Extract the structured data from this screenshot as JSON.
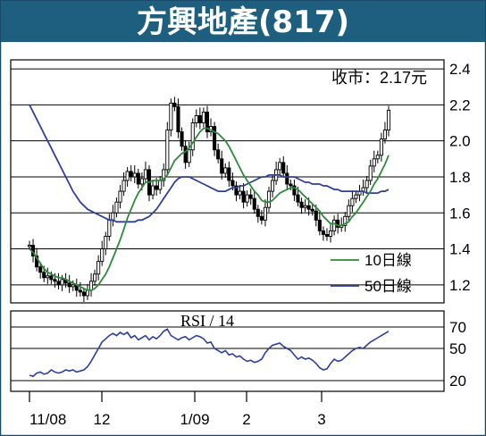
{
  "chart_data": {
    "type": "candlestick",
    "title": "方興地產(817)",
    "price_label": "收市：2.17元",
    "price_axis": {
      "ticks": [
        "2.4",
        "2.2",
        "2.0",
        "1.8",
        "1.6",
        "1.4",
        "1.2"
      ],
      "ylim": [
        1.1,
        2.45
      ]
    },
    "rsi_axis": {
      "ticks": [
        "70",
        "50",
        "20"
      ],
      "ylim": [
        10,
        85
      ]
    },
    "x_ticks": [
      "11/08",
      "12",
      "1/09",
      "2",
      "3"
    ],
    "legend": [
      {
        "name": "10日線",
        "color": "#2e8b3a"
      },
      {
        "name": "50日線",
        "color": "#2f3f9e"
      }
    ],
    "rsi_title": "RSI / 14",
    "close": [
      1.42,
      1.36,
      1.3,
      1.27,
      1.24,
      1.25,
      1.23,
      1.22,
      1.2,
      1.23,
      1.21,
      1.19,
      1.2,
      1.17,
      1.16,
      1.14,
      1.17,
      1.22,
      1.26,
      1.33,
      1.4,
      1.47,
      1.56,
      1.6,
      1.66,
      1.72,
      1.78,
      1.83,
      1.8,
      1.82,
      1.76,
      1.79,
      1.84,
      1.7,
      1.75,
      1.73,
      1.78,
      1.84,
      2.06,
      2.21,
      2.19,
      2.05,
      1.97,
      1.88,
      1.95,
      2.1,
      2.14,
      2.1,
      2.16,
      2.05,
      2.08,
      1.95,
      1.9,
      1.82,
      1.85,
      1.78,
      1.75,
      1.7,
      1.72,
      1.66,
      1.7,
      1.68,
      1.62,
      1.58,
      1.56,
      1.63,
      1.72,
      1.78,
      1.84,
      1.88,
      1.82,
      1.76,
      1.75,
      1.7,
      1.66,
      1.63,
      1.64,
      1.62,
      1.61,
      1.56,
      1.5,
      1.48,
      1.47,
      1.5,
      1.56,
      1.52,
      1.53,
      1.58,
      1.64,
      1.68,
      1.7,
      1.72,
      1.74,
      1.78,
      1.86,
      1.9,
      1.92,
      2.01,
      2.06,
      2.17
    ],
    "ma10": [
      1.4,
      1.38,
      1.35,
      1.32,
      1.29,
      1.27,
      1.26,
      1.25,
      1.24,
      1.24,
      1.23,
      1.22,
      1.21,
      1.2,
      1.19,
      1.18,
      1.17,
      1.17,
      1.18,
      1.2,
      1.23,
      1.26,
      1.3,
      1.35,
      1.4,
      1.45,
      1.51,
      1.57,
      1.62,
      1.67,
      1.71,
      1.74,
      1.77,
      1.77,
      1.78,
      1.78,
      1.78,
      1.79,
      1.81,
      1.85,
      1.89,
      1.91,
      1.93,
      1.94,
      1.96,
      1.99,
      2.02,
      2.05,
      2.07,
      2.07,
      2.06,
      2.05,
      2.04,
      2.02,
      2.0,
      1.97,
      1.93,
      1.89,
      1.85,
      1.81,
      1.78,
      1.75,
      1.72,
      1.7,
      1.67,
      1.66,
      1.66,
      1.67,
      1.69,
      1.71,
      1.72,
      1.73,
      1.74,
      1.74,
      1.73,
      1.71,
      1.69,
      1.67,
      1.65,
      1.63,
      1.61,
      1.58,
      1.56,
      1.54,
      1.54,
      1.53,
      1.53,
      1.54,
      1.55,
      1.58,
      1.6,
      1.63,
      1.66,
      1.69,
      1.72,
      1.76,
      1.79,
      1.83,
      1.87,
      1.92
    ],
    "ma50": [
      2.2,
      2.16,
      2.12,
      2.08,
      2.04,
      2.0,
      1.96,
      1.92,
      1.88,
      1.84,
      1.8,
      1.76,
      1.72,
      1.69,
      1.66,
      1.64,
      1.62,
      1.61,
      1.6,
      1.59,
      1.58,
      1.57,
      1.56,
      1.56,
      1.55,
      1.55,
      1.55,
      1.55,
      1.55,
      1.55,
      1.56,
      1.56,
      1.57,
      1.58,
      1.6,
      1.62,
      1.65,
      1.68,
      1.71,
      1.74,
      1.77,
      1.79,
      1.8,
      1.8,
      1.8,
      1.79,
      1.78,
      1.77,
      1.76,
      1.75,
      1.74,
      1.73,
      1.72,
      1.72,
      1.72,
      1.73,
      1.74,
      1.74,
      1.75,
      1.75,
      1.76,
      1.77,
      1.78,
      1.79,
      1.8,
      1.8,
      1.81,
      1.81,
      1.81,
      1.81,
      1.8,
      1.8,
      1.8,
      1.8,
      1.79,
      1.78,
      1.77,
      1.77,
      1.76,
      1.76,
      1.76,
      1.75,
      1.75,
      1.74,
      1.73,
      1.73,
      1.72,
      1.72,
      1.72,
      1.72,
      1.72,
      1.72,
      1.72,
      1.71,
      1.71,
      1.71,
      1.71,
      1.72,
      1.72,
      1.73
    ],
    "rsi": [
      25,
      24,
      27,
      28,
      26,
      27,
      30,
      28,
      27,
      28,
      30,
      29,
      30,
      28,
      29,
      30,
      33,
      38,
      44,
      50,
      56,
      59,
      62,
      64,
      62,
      65,
      63,
      65,
      60,
      62,
      58,
      60,
      62,
      58,
      61,
      59,
      62,
      66,
      68,
      62,
      60,
      58,
      60,
      61,
      58,
      60,
      62,
      61,
      59,
      55,
      56,
      50,
      48,
      46,
      48,
      44,
      45,
      42,
      43,
      40,
      38,
      39,
      37,
      38,
      40,
      46,
      50,
      53,
      54,
      55,
      52,
      50,
      48,
      44,
      40,
      42,
      40,
      41,
      39,
      36,
      32,
      30,
      31,
      36,
      40,
      38,
      39,
      42,
      45,
      48,
      50,
      51,
      50,
      53,
      56,
      58,
      60,
      62,
      64,
      66
    ]
  }
}
